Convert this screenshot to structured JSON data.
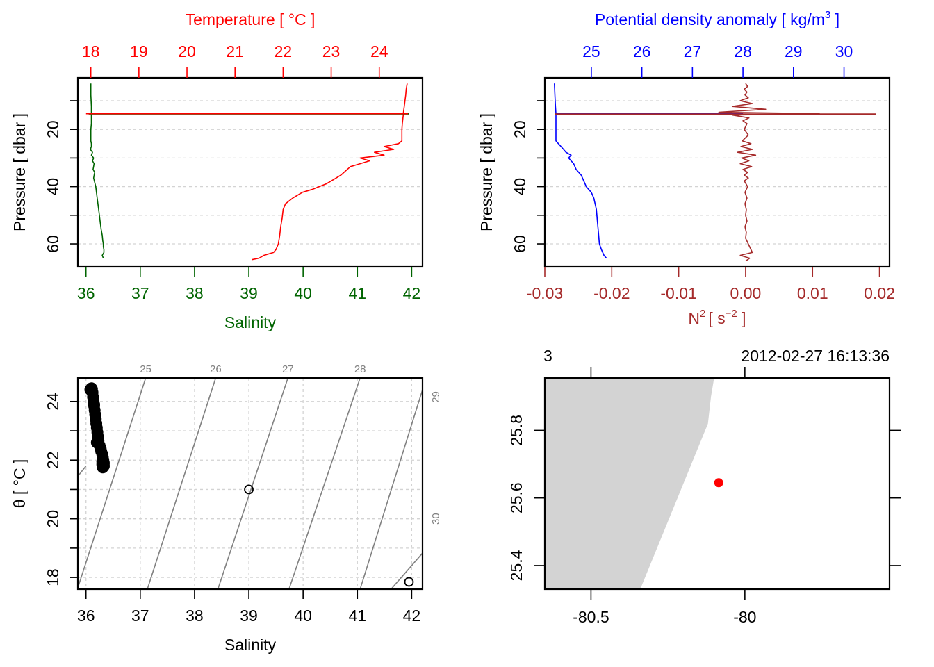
{
  "chart_data": [
    {
      "id": "profile-ts",
      "type": "line",
      "title": "",
      "ylabel": "Pressure [ dbar ]",
      "ylim": [
        68,
        2
      ],
      "y_ticks": [
        20,
        40,
        60
      ],
      "y_minor_ticks": [
        10,
        30,
        50
      ],
      "grid": true,
      "axes": {
        "bottom": {
          "label": "Salinity",
          "range": [
            35.85,
            42.2
          ],
          "ticks": [
            36,
            37,
            38,
            39,
            40,
            41,
            42
          ],
          "color": "#006400"
        },
        "top": {
          "label": "Temperature [ °C ]",
          "range": [
            17.73,
            24.9
          ],
          "ticks": [
            18,
            19,
            20,
            21,
            22,
            23,
            24
          ],
          "color": "#ff0000"
        }
      },
      "series": [
        {
          "name": "Salinity",
          "axis": "bottom",
          "color": "#006400",
          "x": [
            36.09,
            36.09,
            36.1,
            36.1,
            36.1,
            36.1,
            36.09,
            36.09,
            36.09,
            36.1,
            36.1,
            36.08,
            36.12,
            36.1,
            36.14,
            36.12,
            36.15,
            36.13,
            36.16,
            36.14,
            36.18,
            36.2,
            36.22,
            36.24,
            36.26,
            36.28,
            36.3,
            36.31,
            36.32,
            36.32,
            36.33,
            36.33,
            36.3,
            36.32
          ],
          "y": [
            4,
            8,
            12,
            14.5,
            15,
            18,
            20,
            22,
            24,
            25,
            26,
            27,
            28,
            29,
            30,
            31,
            32,
            34,
            35,
            37,
            40,
            43,
            46,
            49,
            52,
            55,
            57,
            59,
            60,
            61,
            62,
            63,
            64,
            65
          ]
        },
        {
          "name": "Temperature",
          "axis": "top",
          "color": "#ff0000",
          "x": [
            24.58,
            24.56,
            24.55,
            24.52,
            24.5,
            24.5,
            24.48,
            24.47,
            24.47,
            24.4,
            24.1,
            24.3,
            23.9,
            24.1,
            23.6,
            23.8,
            23.4,
            23.2,
            23.0,
            22.9,
            22.6,
            22.4,
            22.2,
            22.05,
            22.0,
            21.98,
            21.95,
            21.93,
            21.9,
            21.85,
            21.8,
            21.6,
            21.5,
            21.35
          ],
          "y": [
            4,
            6,
            8,
            12,
            14.5,
            15,
            18,
            20,
            24,
            25,
            26,
            27,
            28,
            29,
            30,
            31,
            33,
            36,
            38,
            39,
            41,
            42,
            44,
            46,
            48,
            51,
            54,
            57,
            60,
            62,
            63,
            64,
            65,
            65.5
          ]
        },
        {
          "name": "Surface spike (salinity)",
          "axis": "bottom",
          "color": "#006400",
          "x": [
            36.05,
            41.95
          ],
          "y": [
            14.6,
            14.6
          ]
        },
        {
          "name": "Surface spike (temperature)",
          "axis": "top",
          "color": "#ff0000",
          "x": [
            17.9,
            24.6
          ],
          "y": [
            14.5,
            14.5
          ]
        }
      ]
    },
    {
      "id": "profile-density-n2",
      "type": "line",
      "title": "",
      "ylabel": "Pressure [ dbar ]",
      "ylim": [
        68,
        2
      ],
      "y_ticks": [
        20,
        40,
        60
      ],
      "y_minor_ticks": [
        10,
        30,
        50
      ],
      "grid": true,
      "axes": {
        "bottom": {
          "label": "N² [ s⁻² ]",
          "label_main": "N",
          "label_sup": "2",
          "label_unit_open": "[ s",
          "label_unit_sup": "−2",
          "label_unit_close": " ]",
          "range": [
            -0.03,
            0.0215
          ],
          "ticks": [
            -0.03,
            -0.02,
            -0.01,
            0.0,
            0.01,
            0.02
          ],
          "tick_labels": [
            "-0.03",
            "-0.02",
            "-0.01",
            "0.00",
            "0.01",
            "0.02"
          ],
          "color": "#a52a2a"
        },
        "top": {
          "label": "Potential density anomaly [ kg/m³ ]",
          "label_main": "Potential density anomaly [ kg/m",
          "label_sup": "3",
          "label_close": " ]",
          "range": [
            24.08,
            30.9
          ],
          "ticks": [
            25,
            26,
            27,
            28,
            29,
            30
          ],
          "color": "#0000ff"
        }
      },
      "series": [
        {
          "name": "Potential density anomaly",
          "axis": "top",
          "color": "#0000ff",
          "x": [
            24.27,
            24.28,
            24.29,
            24.3,
            24.3,
            24.3,
            24.3,
            24.3,
            24.3,
            24.35,
            24.4,
            24.45,
            24.5,
            24.6,
            24.55,
            24.65,
            24.7,
            24.75,
            24.8,
            24.9,
            25.0,
            25.05,
            25.1,
            25.12,
            25.14,
            25.16,
            25.2,
            25.25,
            25.3
          ],
          "y": [
            4,
            8,
            12,
            14.5,
            15,
            18,
            20,
            22,
            24,
            25,
            26,
            27,
            28,
            29,
            30,
            32,
            34,
            35,
            36,
            40,
            42,
            44,
            48,
            52,
            56,
            60,
            62,
            64,
            65
          ]
        },
        {
          "name": "N2",
          "axis": "bottom",
          "color": "#a52a2a",
          "x": [
            0.0,
            0.0003,
            -0.0002,
            0.0002,
            -0.0001,
            0.0004,
            -0.0008,
            0.001,
            -0.002,
            0.003,
            -0.004,
            0.011,
            -0.002,
            0.0005,
            -0.0004,
            0.0002,
            -0.0002,
            0.0004,
            -0.0005,
            0.0008,
            -0.0007,
            0.001,
            -0.0012,
            0.0015,
            -0.0006,
            0.0005,
            -0.0008,
            0.0009,
            -0.0004,
            0.0003,
            -0.0002,
            0.0004,
            -0.0002,
            0.0003,
            -0.0001,
            0.0002,
            -0.0001,
            0.0001,
            0.0,
            0.0002,
            -0.0001,
            0.0001,
            0.0,
            0.001,
            -0.0008,
            0.0006,
            0.0
          ],
          "y": [
            4,
            5,
            6,
            7,
            8,
            9,
            10,
            11,
            12,
            13,
            14,
            14.5,
            15,
            16,
            17,
            18,
            20,
            22,
            24,
            25,
            26,
            27,
            28,
            29,
            30,
            31,
            32,
            33,
            34,
            35,
            36,
            37,
            38,
            40,
            42,
            44,
            46,
            48,
            50,
            52,
            54,
            56,
            58,
            63,
            64,
            65,
            66
          ]
        },
        {
          "name": "Surface spike (density)",
          "axis": "top",
          "color": "#0000ff",
          "x": [
            24.28,
            28.0
          ],
          "y": [
            14.5,
            14.5
          ]
        },
        {
          "name": "Surface spike (N2)",
          "axis": "bottom",
          "color": "#a52a2a",
          "x": [
            -0.0285,
            0.0195
          ],
          "y": [
            14.7,
            14.7
          ]
        }
      ]
    },
    {
      "id": "ts-diagram",
      "type": "scatter",
      "title": "",
      "xlabel": "Salinity",
      "ylabel": "θ [ °C ]",
      "xlim": [
        35.85,
        42.2
      ],
      "ylim": [
        17.6,
        24.8
      ],
      "x_ticks": [
        36,
        37,
        38,
        39,
        40,
        41,
        42
      ],
      "y_ticks": [
        18,
        20,
        22,
        24
      ],
      "y_minor_ticks": [
        19,
        21,
        23
      ],
      "grid": true,
      "points": {
        "color": "#000000",
        "x": [
          36.1,
          36.11,
          36.12,
          36.13,
          36.14,
          36.15,
          36.16,
          36.17,
          36.18,
          36.19,
          36.2,
          36.21,
          36.22,
          36.23,
          36.25,
          36.27,
          36.28,
          36.3,
          36.31,
          36.32,
          36.3,
          36.33,
          36.32,
          36.33,
          36.31,
          36.3,
          36.2,
          36.15,
          36.12,
          36.08
        ],
        "y": [
          24.45,
          24.42,
          24.3,
          24.15,
          24.0,
          23.85,
          23.7,
          23.55,
          23.4,
          23.25,
          23.1,
          22.95,
          22.8,
          22.65,
          22.5,
          22.4,
          22.3,
          22.2,
          22.1,
          22.0,
          21.95,
          21.9,
          21.85,
          21.8,
          21.75,
          21.85,
          22.6,
          23.9,
          24.3,
          24.4
        ],
        "filled": true
      },
      "outliers": [
        {
          "x": 39.0,
          "y": 21.0
        },
        {
          "x": 41.95,
          "y": 17.85
        }
      ],
      "isopycnals": {
        "color": "#808080",
        "levels": [
          24,
          25,
          26,
          27,
          28,
          29,
          30
        ],
        "top_labels": [
          "25",
          "26",
          "27",
          "28"
        ],
        "right_labels": [
          "29",
          "30"
        ],
        "lines": [
          {
            "level": 24,
            "s0": 35.85,
            "t0": 21.45,
            "s1": 36.0,
            "t1": 21.8
          },
          {
            "level": 25,
            "s0": 35.85,
            "t0": 17.65,
            "s1": 37.1,
            "t1": 24.8
          },
          {
            "level": 26,
            "s0": 37.13,
            "t0": 17.6,
            "s1": 38.39,
            "t1": 24.8
          },
          {
            "level": 27,
            "s0": 38.43,
            "t0": 17.6,
            "s1": 39.72,
            "t1": 24.8
          },
          {
            "level": 28,
            "s0": 39.74,
            "t0": 17.6,
            "s1": 41.05,
            "t1": 24.8
          },
          {
            "level": 29,
            "s0": 41.05,
            "t0": 17.6,
            "s1": 42.2,
            "t1": 24.4
          },
          {
            "level": 30,
            "s0": 42.2,
            "t0": 20.9,
            "s1": 42.2,
            "t1": 20.9
          }
        ]
      }
    },
    {
      "id": "station-map",
      "type": "scatter",
      "title": "",
      "header_left": "3",
      "header_right": "2012-02-27 16:13:36",
      "xlim": [
        -80.65,
        -79.53
      ],
      "ylim": [
        25.33,
        25.955
      ],
      "x_ticks": [
        -80.5,
        -80
      ],
      "x_tick_labels": [
        "-80.5",
        "-80"
      ],
      "y_ticks": [
        25.4,
        25.6,
        25.8
      ],
      "y_tick_labels": [
        "25.4",
        "25.6",
        "25.8"
      ],
      "land": {
        "color": "#d3d3d3",
        "lon": [
          -80.65,
          -80.1,
          -80.11,
          -80.12,
          -80.34,
          -80.65
        ],
        "lat": [
          25.955,
          25.955,
          25.9,
          25.82,
          25.33,
          25.33
        ]
      },
      "station": {
        "lon": -80.085,
        "lat": 25.645,
        "color": "#ff0000"
      }
    }
  ]
}
